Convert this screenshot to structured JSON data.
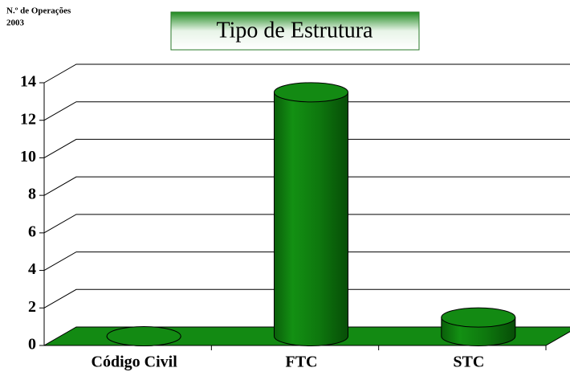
{
  "chart_data": {
    "type": "bar3d",
    "title": "Tipo de Estrutura",
    "ylabel_lines": [
      "N.º de Operações",
      "2003"
    ],
    "categories": [
      "Código Civil",
      "FTC",
      "STC"
    ],
    "values": [
      0,
      13,
      1
    ],
    "color": "#138a13",
    "ylim": [
      0,
      14
    ],
    "yticks": [
      0,
      2,
      4,
      6,
      8,
      10,
      12,
      14
    ],
    "grid": true
  }
}
